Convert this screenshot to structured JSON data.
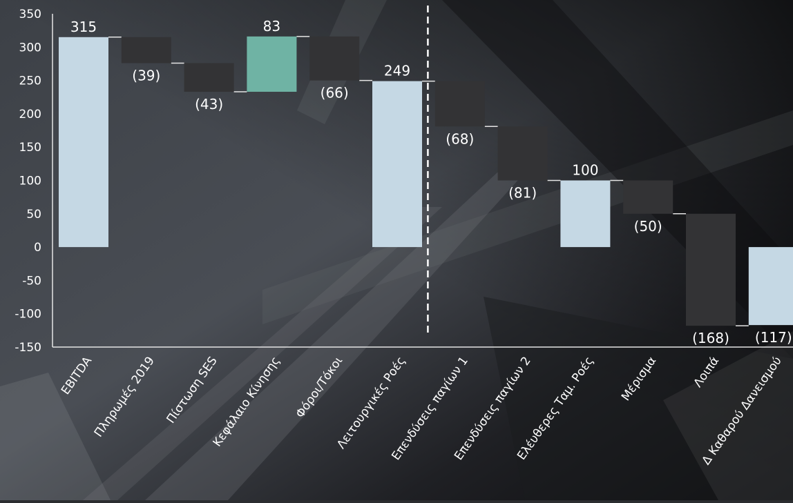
{
  "chart_data": {
    "type": "waterfall",
    "title": "",
    "xlabel": "",
    "ylabel": "",
    "ylim": [
      -150,
      350
    ],
    "yticks": [
      350,
      300,
      250,
      200,
      150,
      100,
      50,
      0,
      -50,
      -100,
      -150
    ],
    "categories": [
      "EBITDA",
      "Πληρωμές 2019",
      "Πίστωση SES",
      "Κεφάλαιο Κίνησης",
      "Φόροι/Τόκοι",
      "Λειτουργικές Ροές",
      "Επενδύσεις παγίων 1",
      "Επενδύσεις παγίων 2",
      "Ελέυθερες Ταμ. Ροές",
      "Μέρισμα",
      "Λοιπά",
      "Δ Καθαρού Δανεισμού"
    ],
    "steps": [
      {
        "kind": "total",
        "value": 315,
        "label": "315"
      },
      {
        "kind": "delta",
        "value": -39,
        "label": "(39)"
      },
      {
        "kind": "delta",
        "value": -43,
        "label": "(43)"
      },
      {
        "kind": "delta",
        "value": 83,
        "label": "83"
      },
      {
        "kind": "delta",
        "value": -66,
        "label": "(66)"
      },
      {
        "kind": "total",
        "value": 249,
        "label": "249"
      },
      {
        "kind": "delta",
        "value": -68,
        "label": "(68)"
      },
      {
        "kind": "delta",
        "value": -81,
        "label": "(81)"
      },
      {
        "kind": "total",
        "value": 100,
        "label": "100"
      },
      {
        "kind": "delta",
        "value": -50,
        "label": "(50)"
      },
      {
        "kind": "delta",
        "value": -168,
        "label": "(168)"
      },
      {
        "kind": "total",
        "value": -117,
        "label": "(117)"
      }
    ],
    "divider_after_category": "Λειτουργικές Ροές",
    "colors": {
      "total": "#c5d8e4",
      "decrease": "#333335",
      "increase": "#6fb3a4",
      "text": "#ffffff",
      "axis": "#e6e6e6",
      "connector": "#e6e6e6",
      "divider": "#ffffff"
    },
    "grid": false,
    "legend": "none"
  }
}
